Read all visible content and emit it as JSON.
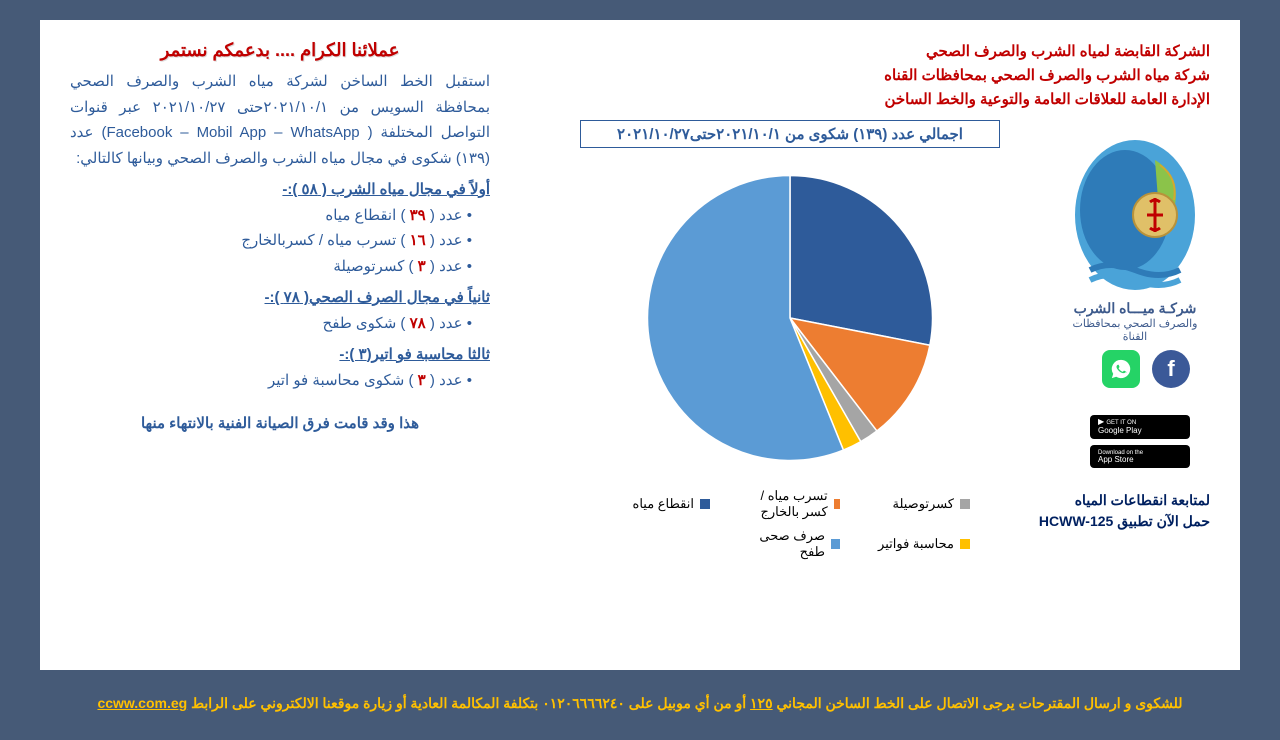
{
  "header": {
    "line1": "الشركة القابضة لمياه الشرب والصرف الصحي",
    "line2": "شركة مياه الشرب والصرف الصحي بمحافظات القناه",
    "line3": "الإدارة العامة للعلاقات العامة والتوعية والخط الساخن"
  },
  "logo_text": {
    "line1": "شركـة ميـــاه الشرب",
    "line2": "والصرف الصحي بمحافظات القناة"
  },
  "store": {
    "google_small": "GET IT ON",
    "google": "Google Play",
    "apple_small": "Download on the",
    "apple": "App Store"
  },
  "app_promo": {
    "line1": "لمتابعة انقطاعات المياه",
    "line2": "حمل الآن تطبيق HCWW-125"
  },
  "chart": {
    "title": "اجمالي عدد (١٣٩) شكوى من ٢٠٢١/١٠/١حتى٢٠٢١/١٠/٢٧",
    "type": "pie",
    "total": 139,
    "slices": [
      {
        "label": "انقطاع مياه",
        "value": 39,
        "color": "#2e5b9a"
      },
      {
        "label": "تسرب مياه / كسر بالخارج",
        "value": 16,
        "color": "#ed7d31"
      },
      {
        "label": "كسرتوصيلة",
        "value": 3,
        "color": "#a5a5a5"
      },
      {
        "label": "محاسبة فواتير",
        "value": 3,
        "color": "#ffc000"
      },
      {
        "label": "صرف صحى طفح",
        "value": 78,
        "color": "#5b9bd5"
      }
    ],
    "legend_row1": [
      "انقطاع مياه",
      "تسرب مياه / كسر بالخارج",
      "كسرتوصيلة"
    ],
    "legend_row2": [
      "صرف صحى طفح",
      "محاسبة فواتير"
    ]
  },
  "left": {
    "title": "عملائنا الكرام .... بدعمكم نستمر",
    "intro": "استقبل الخط الساخن لشركة مياه الشرب والصرف الصحي بمحافظة السويس  من ٢٠٢١/١٠/١حتى ٢٠٢١/١٠/٢٧ عبر قنوات التواصل المختلفة ( Facebook – Mobil App – WhatsApp) عدد (١٣٩) شكوى في مجال مياه الشرب والصرف الصحي  وبيانها كالتالي:",
    "section1_head": "أولاً في مجال  مياه الشرب ( ٥٨  ):-",
    "s1_items": [
      {
        "num": "٣٩",
        "text": "انقطاع مياه"
      },
      {
        "num": "١٦",
        "text": "تسرب مياه / كسربالخارج"
      },
      {
        "num": "٣",
        "text": "كسرتوصيلة"
      }
    ],
    "section2_head": "ثانياً في مجال الصرف الصحي( ٧٨ ):-",
    "s2_items": [
      {
        "num": "٧٨",
        "text": "شكوى طفح"
      }
    ],
    "section3_head": "ثالثا محاسبة فو اتير(٣ ):-",
    "s3_items": [
      {
        "num": "٣",
        "text": "شكوى محاسبة فو اتير"
      }
    ],
    "closing": "هذا وقد قامت فرق الصيانة الفنية بالانتهاء منها"
  },
  "footer": {
    "pre": "للشكوى و ارسال المقترحات يرجى الاتصال على الخط الساخن المجاني ",
    "hotline": "١٢٥",
    "mid": " أو من أي موبيل على ٠١٢٠٦٦٦٦٢٤٠  بتكلفة المكالمة العادية  أو زيارة موقعنا الالكتروني على الرابط",
    "url": "ccww.com.eg"
  },
  "colors": {
    "background": "#465a77",
    "page_bg": "#ffffff",
    "header_red": "#c00000",
    "body_blue": "#2e5b9a",
    "dark_blue": "#002060",
    "footer_gold": "#ffc000"
  }
}
